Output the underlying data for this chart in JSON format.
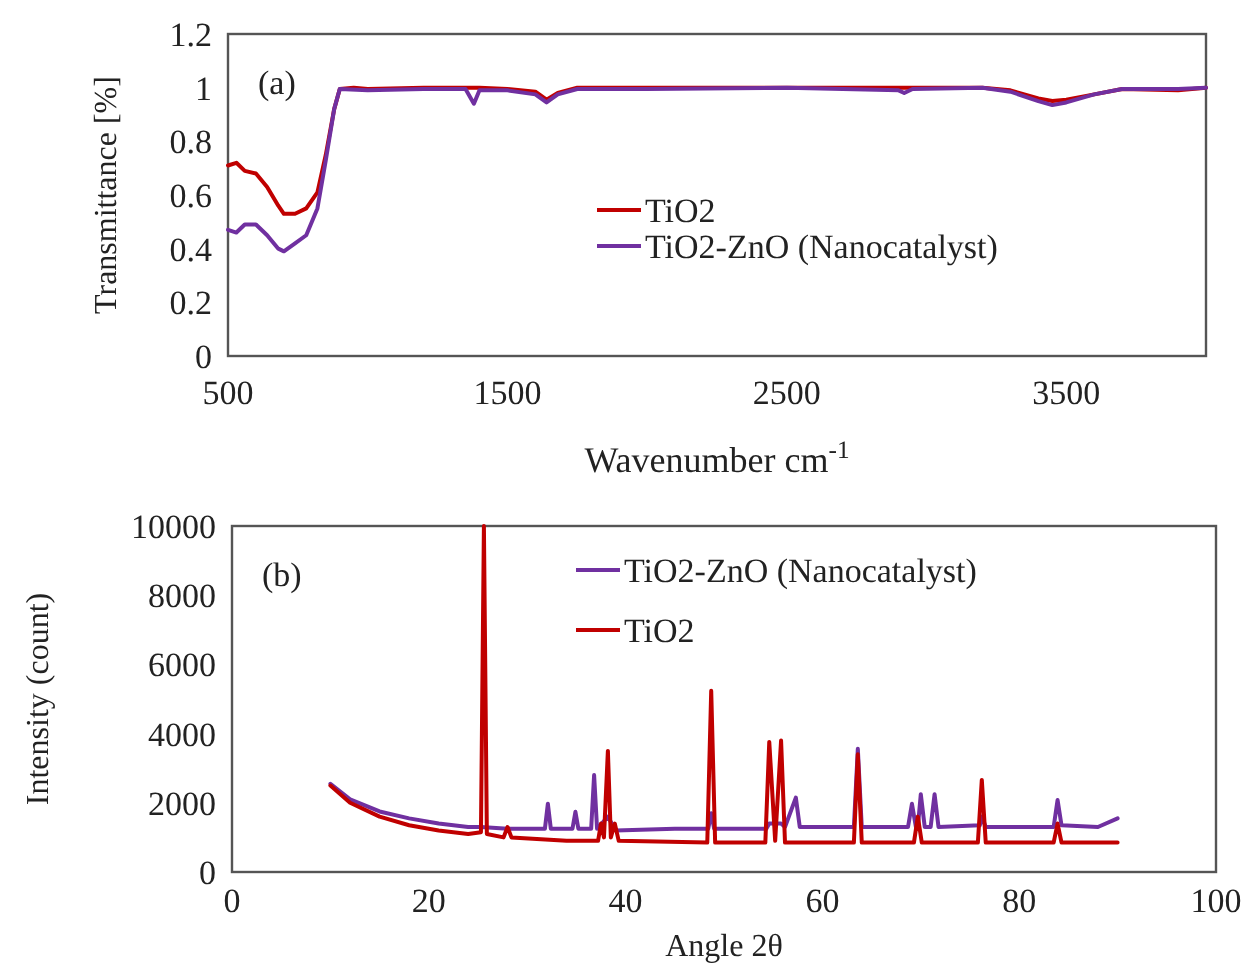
{
  "chart_data": [
    {
      "type": "line",
      "xlabel": "Wavenumber cm$^{-1}$",
      "ylabel": "Transmittance [%]",
      "annotations": [
        "(a)"
      ],
      "xlim": [
        500,
        4000
      ],
      "xticks": [
        500,
        1500,
        2500,
        3500
      ],
      "ylim": [
        0,
        1.2
      ],
      "yticks": [
        0,
        0.2,
        0.4,
        0.6,
        0.8,
        1,
        1.2
      ],
      "grid": false,
      "legend": "bottom",
      "marker": "none",
      "line_style": "solid",
      "series": [
        {
          "name": "TiO2",
          "color": "#c00000",
          "x": [
            500,
            530,
            560,
            600,
            640,
            680,
            700,
            740,
            780,
            820,
            850,
            880,
            900,
            950,
            1000,
            1200,
            1400,
            1500,
            1600,
            1640,
            1680,
            1750,
            2000,
            2500,
            2900,
            3000,
            3200,
            3300,
            3400,
            3450,
            3500,
            3600,
            3700,
            3900,
            4000
          ],
          "values": [
            0.71,
            0.72,
            0.69,
            0.68,
            0.63,
            0.56,
            0.53,
            0.53,
            0.55,
            0.61,
            0.75,
            0.92,
            0.995,
            1.0,
            0.995,
            1.0,
            1.0,
            0.995,
            0.985,
            0.955,
            0.98,
            1.0,
            1.0,
            1.0,
            1.0,
            1.0,
            1.0,
            0.99,
            0.96,
            0.95,
            0.955,
            0.975,
            0.995,
            0.99,
            1.0
          ]
        },
        {
          "name": "TiO2-ZnO (Nanocatalyst)",
          "color": "#7030a0",
          "x": [
            500,
            530,
            560,
            600,
            640,
            680,
            700,
            740,
            780,
            820,
            850,
            880,
            900,
            1000,
            1200,
            1350,
            1380,
            1400,
            1500,
            1600,
            1640,
            1680,
            1750,
            2000,
            2500,
            2900,
            2920,
            2950,
            3200,
            3300,
            3400,
            3450,
            3500,
            3600,
            3700,
            3900,
            4000
          ],
          "values": [
            0.47,
            0.46,
            0.49,
            0.49,
            0.45,
            0.4,
            0.39,
            0.42,
            0.45,
            0.55,
            0.73,
            0.92,
            0.995,
            0.99,
            0.995,
            0.995,
            0.94,
            0.99,
            0.99,
            0.975,
            0.945,
            0.975,
            0.995,
            0.995,
            1.0,
            0.99,
            0.98,
            0.995,
            1.0,
            0.985,
            0.95,
            0.935,
            0.945,
            0.975,
            0.995,
            0.995,
            1.0
          ]
        }
      ]
    },
    {
      "type": "line",
      "xlabel": "Angle 2θ",
      "ylabel": "Intensity (count)",
      "annotations": [
        "(b)"
      ],
      "xlim": [
        0,
        100
      ],
      "xticks": [
        0,
        20,
        40,
        60,
        80,
        100
      ],
      "ylim": [
        0,
        10000
      ],
      "yticks": [
        0,
        2000,
        4000,
        6000,
        8000,
        10000
      ],
      "grid": false,
      "legend": "top right",
      "marker": "none",
      "line_style": "solid",
      "series": [
        {
          "name": "TiO2-ZnO (Nanocatalyst)",
          "color": "#7030a0",
          "x": [
            10,
            12,
            15,
            18,
            21,
            24,
            25.3,
            28,
            30,
            31.8,
            32.1,
            32.4,
            34.6,
            34.9,
            35.2,
            36.5,
            36.8,
            37.1,
            38.2,
            39,
            45,
            48.4,
            48.7,
            49,
            54.3,
            54.6,
            55.8,
            56.2,
            57.3,
            57.7,
            63.2,
            63.6,
            64,
            68.7,
            69.1,
            69.5,
            69.7,
            70,
            70.4,
            71,
            71.4,
            71.8,
            76,
            76.2,
            76.6,
            83.5,
            83.9,
            84.3,
            88,
            90
          ],
          "values": [
            2550,
            2100,
            1750,
            1550,
            1400,
            1300,
            1300,
            1250,
            1250,
            1250,
            1970,
            1250,
            1250,
            1740,
            1250,
            1250,
            2800,
            1250,
            1600,
            1200,
            1250,
            1250,
            1700,
            1250,
            1250,
            1400,
            1400,
            1300,
            2150,
            1300,
            1300,
            3560,
            1300,
            1300,
            1970,
            1300,
            1300,
            2250,
            1300,
            1300,
            2250,
            1300,
            1350,
            1600,
            1300,
            1300,
            2080,
            1350,
            1300,
            1550
          ]
        },
        {
          "name": "TiO2",
          "color": "#c00000",
          "x": [
            10,
            12,
            15,
            18,
            21,
            24,
            25.3,
            25.6,
            25.9,
            27.6,
            28,
            28.4,
            34,
            37.2,
            37.5,
            37.8,
            38.2,
            38.5,
            38.9,
            39.3,
            48.3,
            48.7,
            49.1,
            54.2,
            54.6,
            55.2,
            55.8,
            56.2,
            63.2,
            63.6,
            64,
            69.3,
            69.7,
            70.1,
            75.8,
            76.2,
            76.6,
            83.5,
            83.9,
            84.3,
            90
          ],
          "values": [
            2500,
            2000,
            1600,
            1350,
            1200,
            1100,
            1150,
            10000,
            1100,
            1000,
            1300,
            1000,
            900,
            900,
            1400,
            1000,
            3500,
            1000,
            1400,
            900,
            850,
            5240,
            850,
            850,
            3760,
            900,
            3800,
            850,
            850,
            3400,
            850,
            850,
            1600,
            850,
            850,
            2660,
            850,
            850,
            1400,
            850,
            850
          ]
        }
      ]
    }
  ]
}
